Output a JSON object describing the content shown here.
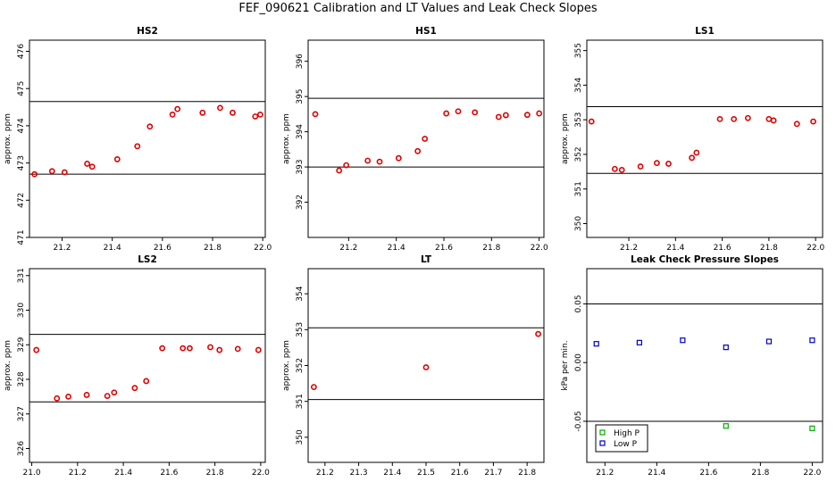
{
  "figure_title": "FEF_090621  Calibration and LT Values and Leak Check Slopes",
  "colors": {
    "red": "#dd0000",
    "green": "#00aa00",
    "blue": "#0000cc",
    "axis": "#000000"
  },
  "chart_data": [
    {
      "type": "scatter",
      "title": "HS2",
      "xlabel": "",
      "ylabel": "approx. ppm",
      "xlim": [
        21.07,
        22.01
      ],
      "ylim": [
        471,
        476.3
      ],
      "xticks": [
        "21.2",
        "21.4",
        "21.6",
        "21.8",
        "22.0"
      ],
      "yticks": [
        "471",
        "472",
        "473",
        "474",
        "475",
        "476"
      ],
      "hlines": [
        472.7,
        474.65
      ],
      "series": [
        {
          "color": "red",
          "marker": "circle",
          "x": [
            21.09,
            21.16,
            21.21,
            21.3,
            21.32,
            21.42,
            21.5,
            21.55,
            21.64,
            21.66,
            21.76,
            21.83,
            21.88,
            21.97,
            21.99
          ],
          "y": [
            472.7,
            472.78,
            472.75,
            472.98,
            472.9,
            473.1,
            473.45,
            473.98,
            474.3,
            474.45,
            474.35,
            474.48,
            474.35,
            474.25,
            474.3
          ]
        }
      ]
    },
    {
      "type": "scatter",
      "title": "HS1",
      "xlabel": "",
      "ylabel": "approx. ppm",
      "xlim": [
        21.03,
        22.02
      ],
      "ylim": [
        391,
        396.6
      ],
      "xticks": [
        "21.2",
        "21.4",
        "21.6",
        "21.8",
        "22.0"
      ],
      "yticks": [
        "392",
        "393",
        "394",
        "395",
        "396"
      ],
      "hlines": [
        393,
        394.95
      ],
      "series": [
        {
          "color": "red",
          "marker": "circle",
          "x": [
            21.06,
            21.16,
            21.19,
            21.28,
            21.33,
            21.41,
            21.49,
            21.52,
            21.61,
            21.66,
            21.73,
            21.83,
            21.86,
            21.95,
            22.0
          ],
          "y": [
            394.5,
            392.9,
            393.05,
            393.18,
            393.15,
            393.25,
            393.45,
            393.8,
            394.52,
            394.58,
            394.55,
            394.42,
            394.47,
            394.48,
            394.52
          ]
        }
      ]
    },
    {
      "type": "scatter",
      "title": "LS1",
      "xlabel": "",
      "ylabel": "approx. ppm",
      "xlim": [
        21.02,
        22.03
      ],
      "ylim": [
        349.6,
        355.3
      ],
      "xticks": [
        "21.2",
        "21.4",
        "21.6",
        "21.8",
        "22.0"
      ],
      "yticks": [
        "350",
        "351",
        "352",
        "353",
        "354",
        "355"
      ],
      "hlines": [
        351.45,
        353.38
      ],
      "series": [
        {
          "color": "red",
          "marker": "circle",
          "x": [
            21.04,
            21.14,
            21.17,
            21.25,
            21.32,
            21.37,
            21.47,
            21.49,
            21.59,
            21.65,
            21.71,
            21.8,
            21.82,
            21.92,
            21.99
          ],
          "y": [
            352.95,
            351.58,
            351.55,
            351.65,
            351.75,
            351.73,
            351.9,
            352.05,
            353.02,
            353.02,
            353.05,
            353.02,
            352.98,
            352.88,
            352.95
          ]
        }
      ]
    },
    {
      "type": "scatter",
      "title": "LS2",
      "xlabel": "",
      "ylabel": "approx. ppm",
      "xlim": [
        20.99,
        22.02
      ],
      "ylim": [
        325.6,
        331.2
      ],
      "xticks": [
        "21.0",
        "21.2",
        "21.4",
        "21.6",
        "21.8",
        "22.0"
      ],
      "yticks": [
        "326",
        "327",
        "328",
        "329",
        "330",
        "331"
      ],
      "hlines": [
        327.35,
        329.3
      ],
      "series": [
        {
          "color": "red",
          "marker": "circle",
          "x": [
            21.02,
            21.11,
            21.16,
            21.24,
            21.33,
            21.36,
            21.45,
            21.5,
            21.57,
            21.66,
            21.69,
            21.78,
            21.82,
            21.9,
            21.99
          ],
          "y": [
            328.85,
            327.45,
            327.5,
            327.55,
            327.52,
            327.62,
            327.75,
            327.95,
            328.9,
            328.9,
            328.9,
            328.93,
            328.85,
            328.88,
            328.85
          ]
        }
      ]
    },
    {
      "type": "scatter",
      "title": "LT",
      "xlabel": "",
      "ylabel": "approx. ppm",
      "xlim": [
        21.15,
        21.85
      ],
      "ylim": [
        349.3,
        354.7
      ],
      "xticks": [
        "21.2",
        "21.3",
        "21.4",
        "21.5",
        "21.6",
        "21.7",
        "21.8"
      ],
      "yticks": [
        "350",
        "351",
        "352",
        "353",
        "354"
      ],
      "hlines": [
        351.05,
        353.05
      ],
      "series": [
        {
          "color": "red",
          "marker": "circle",
          "x": [
            21.167,
            21.5,
            21.833
          ],
          "y": [
            351.4,
            351.95,
            352.88
          ]
        }
      ]
    },
    {
      "type": "scatter",
      "title": "Leak Check Pressure Slopes",
      "xlabel": "",
      "ylabel": "kPa per min.",
      "xlim": [
        21.13,
        22.04
      ],
      "ylim": [
        -0.085,
        0.08
      ],
      "xticks": [
        "21.2",
        "21.4",
        "21.6",
        "21.8",
        "22.0"
      ],
      "yticks": [
        "-0.05",
        "0.00",
        "0.05"
      ],
      "hlines": [
        0.05,
        -0.05
      ],
      "legend_position": "bottom-left",
      "series": [
        {
          "name": "High P",
          "color": "green",
          "marker": "square",
          "x": [
            21.333,
            21.667,
            22.0
          ],
          "y": [
            -0.058,
            -0.054,
            -0.056
          ]
        },
        {
          "name": "Low P",
          "color": "blue",
          "marker": "square",
          "x": [
            21.167,
            21.333,
            21.5,
            21.667,
            21.833,
            22.0
          ],
          "y": [
            0.016,
            0.017,
            0.019,
            0.013,
            0.018,
            0.019
          ]
        }
      ]
    }
  ]
}
